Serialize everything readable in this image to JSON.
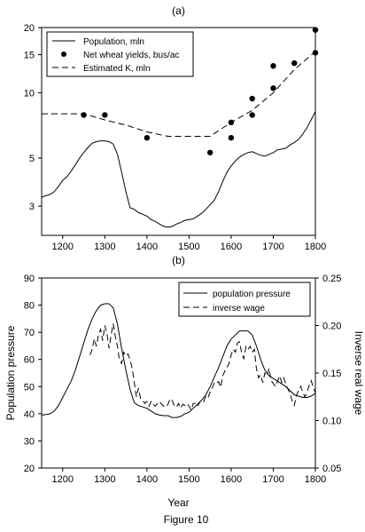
{
  "figure_caption": "Figure 10",
  "chart_data": [
    {
      "type": "line",
      "panel_label": "(a)",
      "xlabel": "",
      "ylabel": "",
      "xlim": [
        1150,
        1800
      ],
      "ylim": [
        2.2,
        20
      ],
      "yscale": "log",
      "xticks": [
        1200,
        1300,
        1400,
        1500,
        1600,
        1700,
        1800
      ],
      "yticks": [
        3,
        5,
        10,
        15,
        20
      ],
      "legend_position": "top-left",
      "series": [
        {
          "name": "Population, mln",
          "style": "solid",
          "x": [
            1150,
            1160,
            1170,
            1180,
            1190,
            1200,
            1210,
            1220,
            1230,
            1240,
            1250,
            1260,
            1270,
            1280,
            1290,
            1300,
            1310,
            1320,
            1330,
            1340,
            1350,
            1360,
            1370,
            1380,
            1390,
            1400,
            1410,
            1420,
            1430,
            1440,
            1450,
            1460,
            1470,
            1480,
            1490,
            1500,
            1510,
            1520,
            1530,
            1540,
            1550,
            1560,
            1570,
            1580,
            1590,
            1600,
            1610,
            1620,
            1630,
            1640,
            1650,
            1660,
            1670,
            1680,
            1690,
            1700,
            1710,
            1720,
            1730,
            1740,
            1750,
            1760,
            1770,
            1780,
            1790,
            1800
          ],
          "values": [
            3.3,
            3.35,
            3.4,
            3.5,
            3.7,
            3.95,
            4.1,
            4.35,
            4.65,
            5.0,
            5.3,
            5.6,
            5.85,
            5.95,
            6.0,
            6.0,
            5.95,
            5.8,
            5.2,
            4.3,
            3.5,
            2.95,
            2.9,
            2.8,
            2.75,
            2.7,
            2.6,
            2.55,
            2.48,
            2.42,
            2.4,
            2.42,
            2.48,
            2.52,
            2.58,
            2.6,
            2.62,
            2.7,
            2.78,
            2.9,
            3.05,
            3.2,
            3.5,
            3.9,
            4.3,
            4.6,
            4.85,
            5.05,
            5.2,
            5.3,
            5.35,
            5.25,
            5.15,
            5.1,
            5.2,
            5.3,
            5.45,
            5.5,
            5.55,
            5.75,
            5.9,
            6.1,
            6.45,
            6.9,
            7.5,
            8.2
          ]
        },
        {
          "name": "Net wheat yields, bus/ac",
          "style": "points",
          "x": [
            1250,
            1300,
            1400,
            1550,
            1600,
            1600,
            1650,
            1650,
            1700,
            1700,
            1750,
            1800,
            1800
          ],
          "values": [
            7.9,
            7.9,
            6.2,
            5.3,
            7.3,
            6.2,
            9.4,
            7.9,
            13.3,
            10.5,
            13.7,
            19.5,
            15.3
          ]
        },
        {
          "name": "Estimated K, mln",
          "style": "dashed",
          "x": [
            1150,
            1250,
            1300,
            1350,
            1400,
            1450,
            1500,
            1550,
            1600,
            1650,
            1700,
            1750,
            1800
          ],
          "values": [
            8.0,
            8.0,
            7.5,
            7.1,
            6.6,
            6.3,
            6.3,
            6.3,
            7.3,
            8.3,
            10.0,
            12.8,
            15.5
          ]
        }
      ]
    },
    {
      "type": "line",
      "panel_label": "(b)",
      "xlabel": "Year",
      "ylabel": "Population pressure",
      "ylabel_right": "Inverse real wage",
      "xlim": [
        1150,
        1800
      ],
      "ylim": [
        20,
        90
      ],
      "ylim_right": [
        0.05,
        0.25
      ],
      "xticks": [
        1200,
        1300,
        1400,
        1500,
        1600,
        1700,
        1800
      ],
      "yticks": [
        20,
        30,
        40,
        50,
        60,
        70,
        80,
        90
      ],
      "yticks_right": [
        "0.05",
        "0.10",
        "0.15",
        "0.20",
        "0.25"
      ],
      "legend_position": "top-right",
      "series": [
        {
          "name": "population pressure",
          "style": "solid",
          "axis": "left",
          "x": [
            1150,
            1160,
            1170,
            1180,
            1190,
            1200,
            1210,
            1220,
            1230,
            1240,
            1250,
            1260,
            1270,
            1280,
            1290,
            1300,
            1310,
            1320,
            1330,
            1340,
            1350,
            1360,
            1370,
            1380,
            1390,
            1400,
            1410,
            1420,
            1430,
            1440,
            1450,
            1460,
            1470,
            1480,
            1490,
            1500,
            1510,
            1520,
            1530,
            1540,
            1550,
            1560,
            1570,
            1580,
            1590,
            1600,
            1610,
            1620,
            1630,
            1640,
            1650,
            1660,
            1670,
            1680,
            1690,
            1700,
            1710,
            1720,
            1730,
            1740,
            1750,
            1760,
            1770,
            1780,
            1790,
            1800
          ],
          "values": [
            39.5,
            39.7,
            40,
            41,
            43,
            46,
            49,
            52,
            56,
            61,
            66,
            71,
            75,
            78,
            80,
            80.5,
            80.5,
            79,
            73,
            64,
            56,
            49,
            44,
            43,
            42.5,
            42,
            41,
            40,
            39.5,
            39.3,
            39.3,
            38.6,
            38.6,
            39,
            40,
            40.5,
            42,
            43.5,
            45,
            47,
            50,
            53.5,
            57,
            61,
            65,
            67.5,
            69,
            70.5,
            70.5,
            70.5,
            69,
            65,
            60,
            56,
            54,
            53,
            52,
            51,
            50,
            48.5,
            47,
            46.5,
            46,
            46,
            46.5,
            47.5
          ]
        },
        {
          "name": "inverse wage",
          "style": "dashed",
          "axis": "right",
          "x": [
            1265,
            1270,
            1275,
            1280,
            1285,
            1290,
            1295,
            1300,
            1305,
            1310,
            1315,
            1320,
            1325,
            1330,
            1335,
            1340,
            1345,
            1350,
            1355,
            1360,
            1365,
            1370,
            1375,
            1380,
            1385,
            1390,
            1395,
            1400,
            1405,
            1410,
            1415,
            1420,
            1425,
            1430,
            1435,
            1440,
            1445,
            1450,
            1455,
            1460,
            1465,
            1470,
            1475,
            1480,
            1485,
            1490,
            1495,
            1500,
            1505,
            1510,
            1515,
            1520,
            1525,
            1530,
            1535,
            1540,
            1545,
            1550,
            1555,
            1560,
            1565,
            1570,
            1575,
            1580,
            1585,
            1590,
            1595,
            1600,
            1605,
            1610,
            1615,
            1620,
            1625,
            1630,
            1635,
            1640,
            1645,
            1650,
            1655,
            1660,
            1665,
            1670,
            1675,
            1680,
            1685,
            1690,
            1695,
            1700,
            1705,
            1710,
            1715,
            1720,
            1725,
            1730,
            1735,
            1740,
            1745,
            1750,
            1755,
            1760,
            1765,
            1770,
            1775,
            1780,
            1785,
            1790,
            1795,
            1800
          ],
          "values": [
            0.169,
            0.175,
            0.186,
            0.178,
            0.19,
            0.196,
            0.184,
            0.2,
            0.192,
            0.176,
            0.19,
            0.202,
            0.188,
            0.178,
            0.163,
            0.16,
            0.172,
            0.168,
            0.17,
            0.164,
            0.155,
            0.14,
            0.125,
            0.134,
            0.123,
            0.121,
            0.118,
            0.12,
            0.115,
            0.12,
            0.117,
            0.115,
            0.118,
            0.12,
            0.117,
            0.115,
            0.114,
            0.117,
            0.123,
            0.121,
            0.116,
            0.114,
            0.118,
            0.113,
            0.117,
            0.116,
            0.118,
            0.115,
            0.111,
            0.118,
            0.118,
            0.115,
            0.119,
            0.122,
            0.12,
            0.126,
            0.124,
            0.13,
            0.134,
            0.14,
            0.139,
            0.141,
            0.135,
            0.147,
            0.152,
            0.156,
            0.16,
            0.169,
            0.175,
            0.172,
            0.182,
            0.183,
            0.171,
            0.165,
            0.178,
            0.175,
            0.178,
            0.172,
            0.175,
            0.155,
            0.145,
            0.148,
            0.14,
            0.15,
            0.147,
            0.155,
            0.142,
            0.139,
            0.136,
            0.141,
            0.147,
            0.14,
            0.145,
            0.138,
            0.133,
            0.128,
            0.12,
            0.116,
            0.126,
            0.132,
            0.136,
            0.13,
            0.125,
            0.129,
            0.137,
            0.142,
            0.135,
            0.129
          ]
        }
      ]
    }
  ]
}
